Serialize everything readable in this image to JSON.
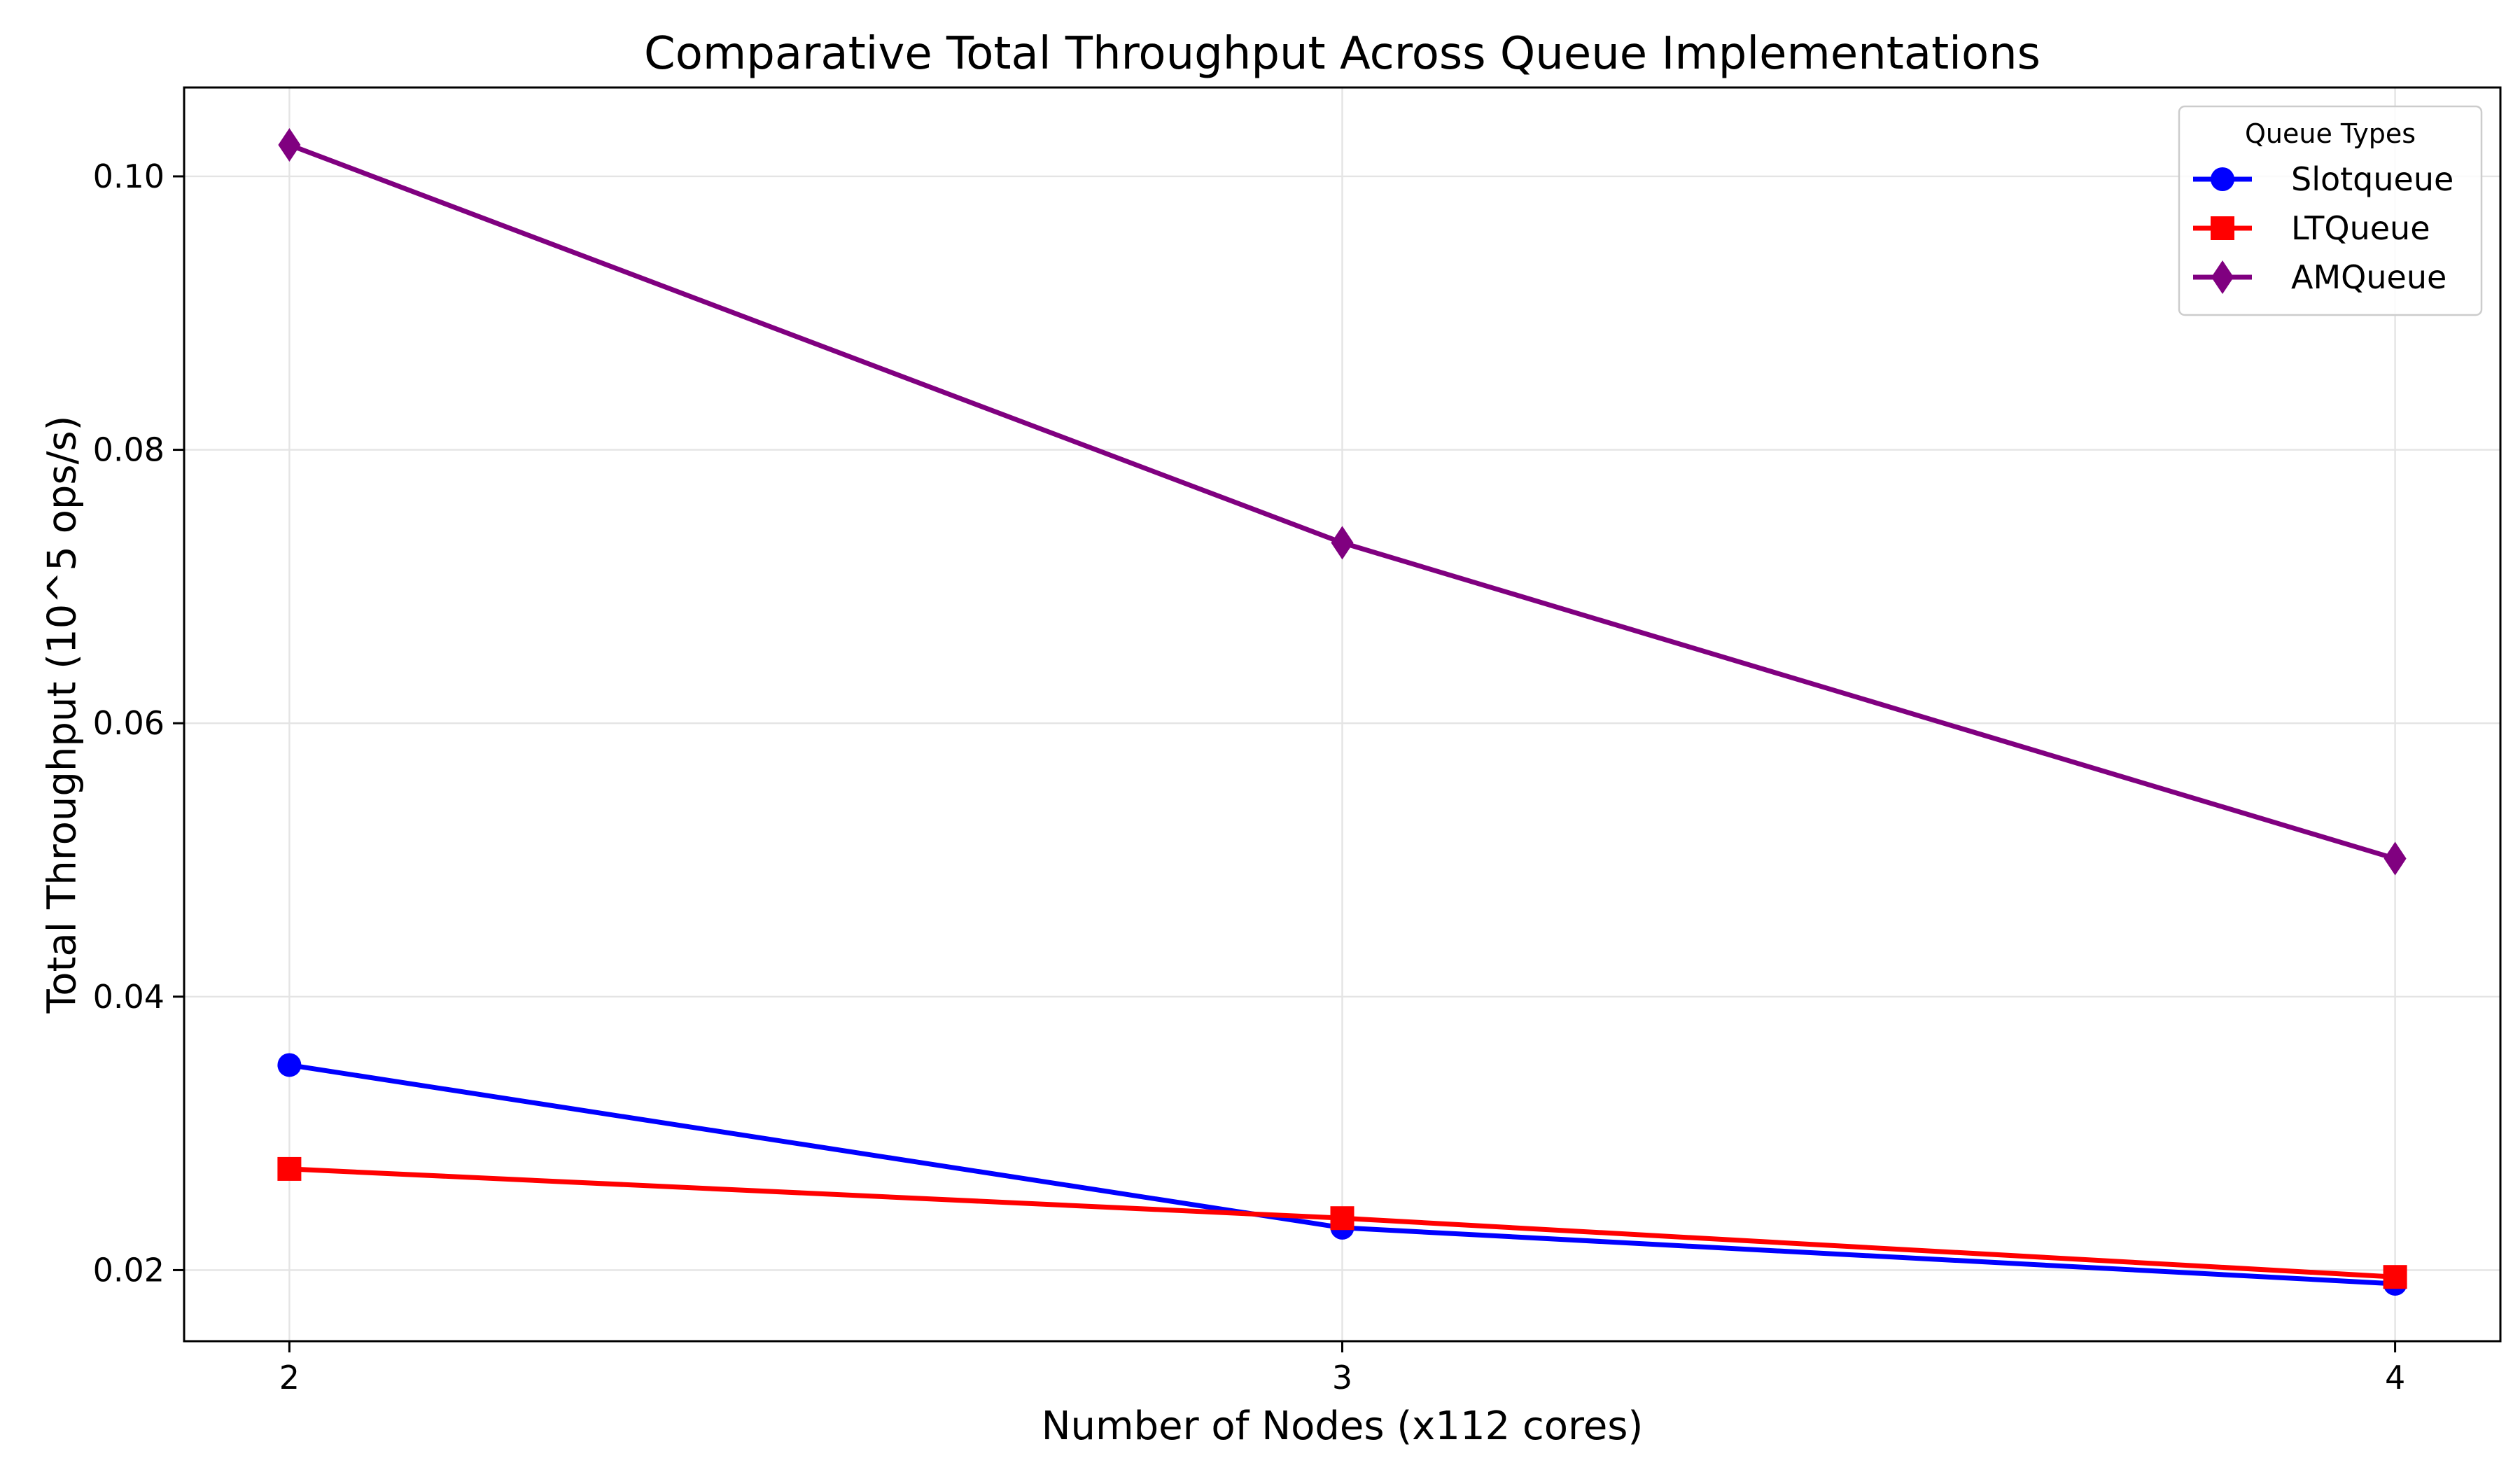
{
  "chart_data": {
    "type": "line",
    "title": "Comparative Total Throughput Across Queue Implementations",
    "xlabel": "Number of Nodes (x112 cores)",
    "ylabel": "Total Throughput (10^5 ops/s)",
    "x": [
      2,
      3,
      4
    ],
    "x_tick_labels": [
      "2",
      "3",
      "4"
    ],
    "y_ticks": [
      0.02,
      0.04,
      0.06,
      0.08,
      0.1
    ],
    "y_tick_labels": [
      "0.02",
      "0.04",
      "0.06",
      "0.08",
      "0.10"
    ],
    "xlim": [
      1.9,
      4.1
    ],
    "ylim": [
      0.0148,
      0.1065
    ],
    "grid": true,
    "legend": {
      "title": "Queue Types",
      "position": "top-right"
    },
    "series": [
      {
        "name": "Slotqueue",
        "color": "#0000ff",
        "marker": "circle",
        "values": [
          0.035,
          0.0231,
          0.019
        ]
      },
      {
        "name": "LTQueue",
        "color": "#ff0000",
        "marker": "square",
        "values": [
          0.0274,
          0.0238,
          0.0195
        ]
      },
      {
        "name": "AMQueue",
        "color": "#800080",
        "marker": "diamond",
        "values": [
          0.1023,
          0.0732,
          0.0501
        ]
      }
    ]
  }
}
